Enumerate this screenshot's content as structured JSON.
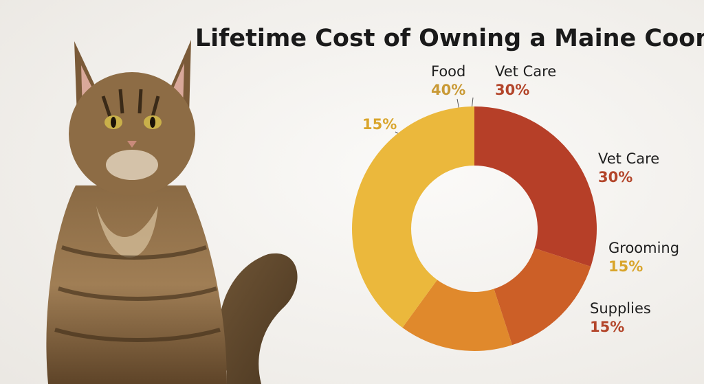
{
  "chart_data": {
    "type": "donut",
    "title": "Lifetime Cost of Owning a Maine Coon",
    "categories": [
      "Vet Care",
      "Grooming",
      "Supplies",
      "Food"
    ],
    "values": [
      30,
      15,
      15,
      40
    ],
    "value_labels": [
      "30%",
      "15%",
      "15%",
      "40%"
    ],
    "colors": [
      "#b63f28",
      "#cc5f27",
      "#e0892c",
      "#ebb83c"
    ],
    "label_colors": [
      "#b3452a",
      "#d9a52c",
      "#b3452a",
      "#c99a36"
    ],
    "annotations": [
      {
        "label": "Vet Care",
        "value_label": "30%",
        "color": "#b3452a"
      },
      {
        "value_label": "15%",
        "color": "#d9a52c"
      }
    ]
  }
}
